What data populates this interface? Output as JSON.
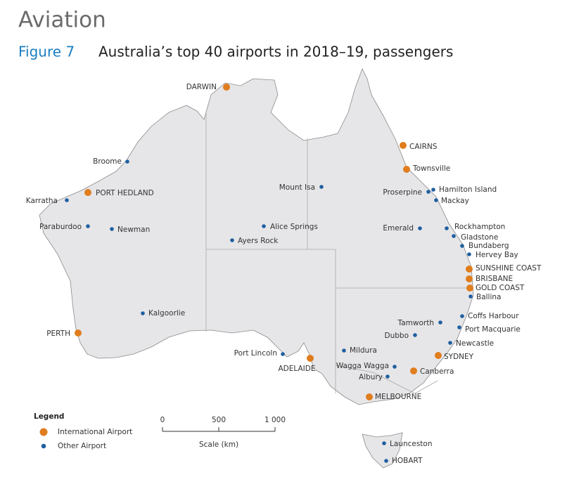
{
  "header": {
    "section": "Aviation",
    "figure_number": "Figure 7",
    "figure_title": "Australia’s top 40 airports in 2018–19, passengers"
  },
  "airports": {
    "international": [
      "DARWIN",
      "PORT HEDLAND",
      "PERTH",
      "ADELAIDE",
      "MELBOURNE",
      "SYDNEY",
      "Canberra",
      "SUNSHINE COAST",
      "BRISBANE",
      "GOLD COAST",
      "CAIRNS",
      "Townsville"
    ],
    "other": [
      "Broome",
      "Karratha",
      "Paraburdoo",
      "Newman",
      "Kalgoorlie",
      "Ayers Rock",
      "Alice Springs",
      "Mount Isa",
      "Port Lincoln",
      "Mildura",
      "Wagga Wagga",
      "Albury",
      "Dubbo",
      "Tamworth",
      "Emerald",
      "Proserpine",
      "Hamilton Island",
      "Mackay",
      "Rockhampton",
      "Gladstone",
      "Bundaberg",
      "Hervey Bay",
      "Ballina",
      "Coffs Harbour",
      "Port Macquarie",
      "Newcastle",
      "Launceston",
      "HOBART"
    ]
  },
  "legend": {
    "title": "Legend",
    "items": [
      {
        "label": "International Airport",
        "color": "#e07d1e"
      },
      {
        "label": "Other Airport",
        "color": "#1f5fa0"
      }
    ]
  },
  "scale": {
    "ticks": [
      "0",
      "500",
      "1 000"
    ],
    "label": "Scale (km)"
  }
}
